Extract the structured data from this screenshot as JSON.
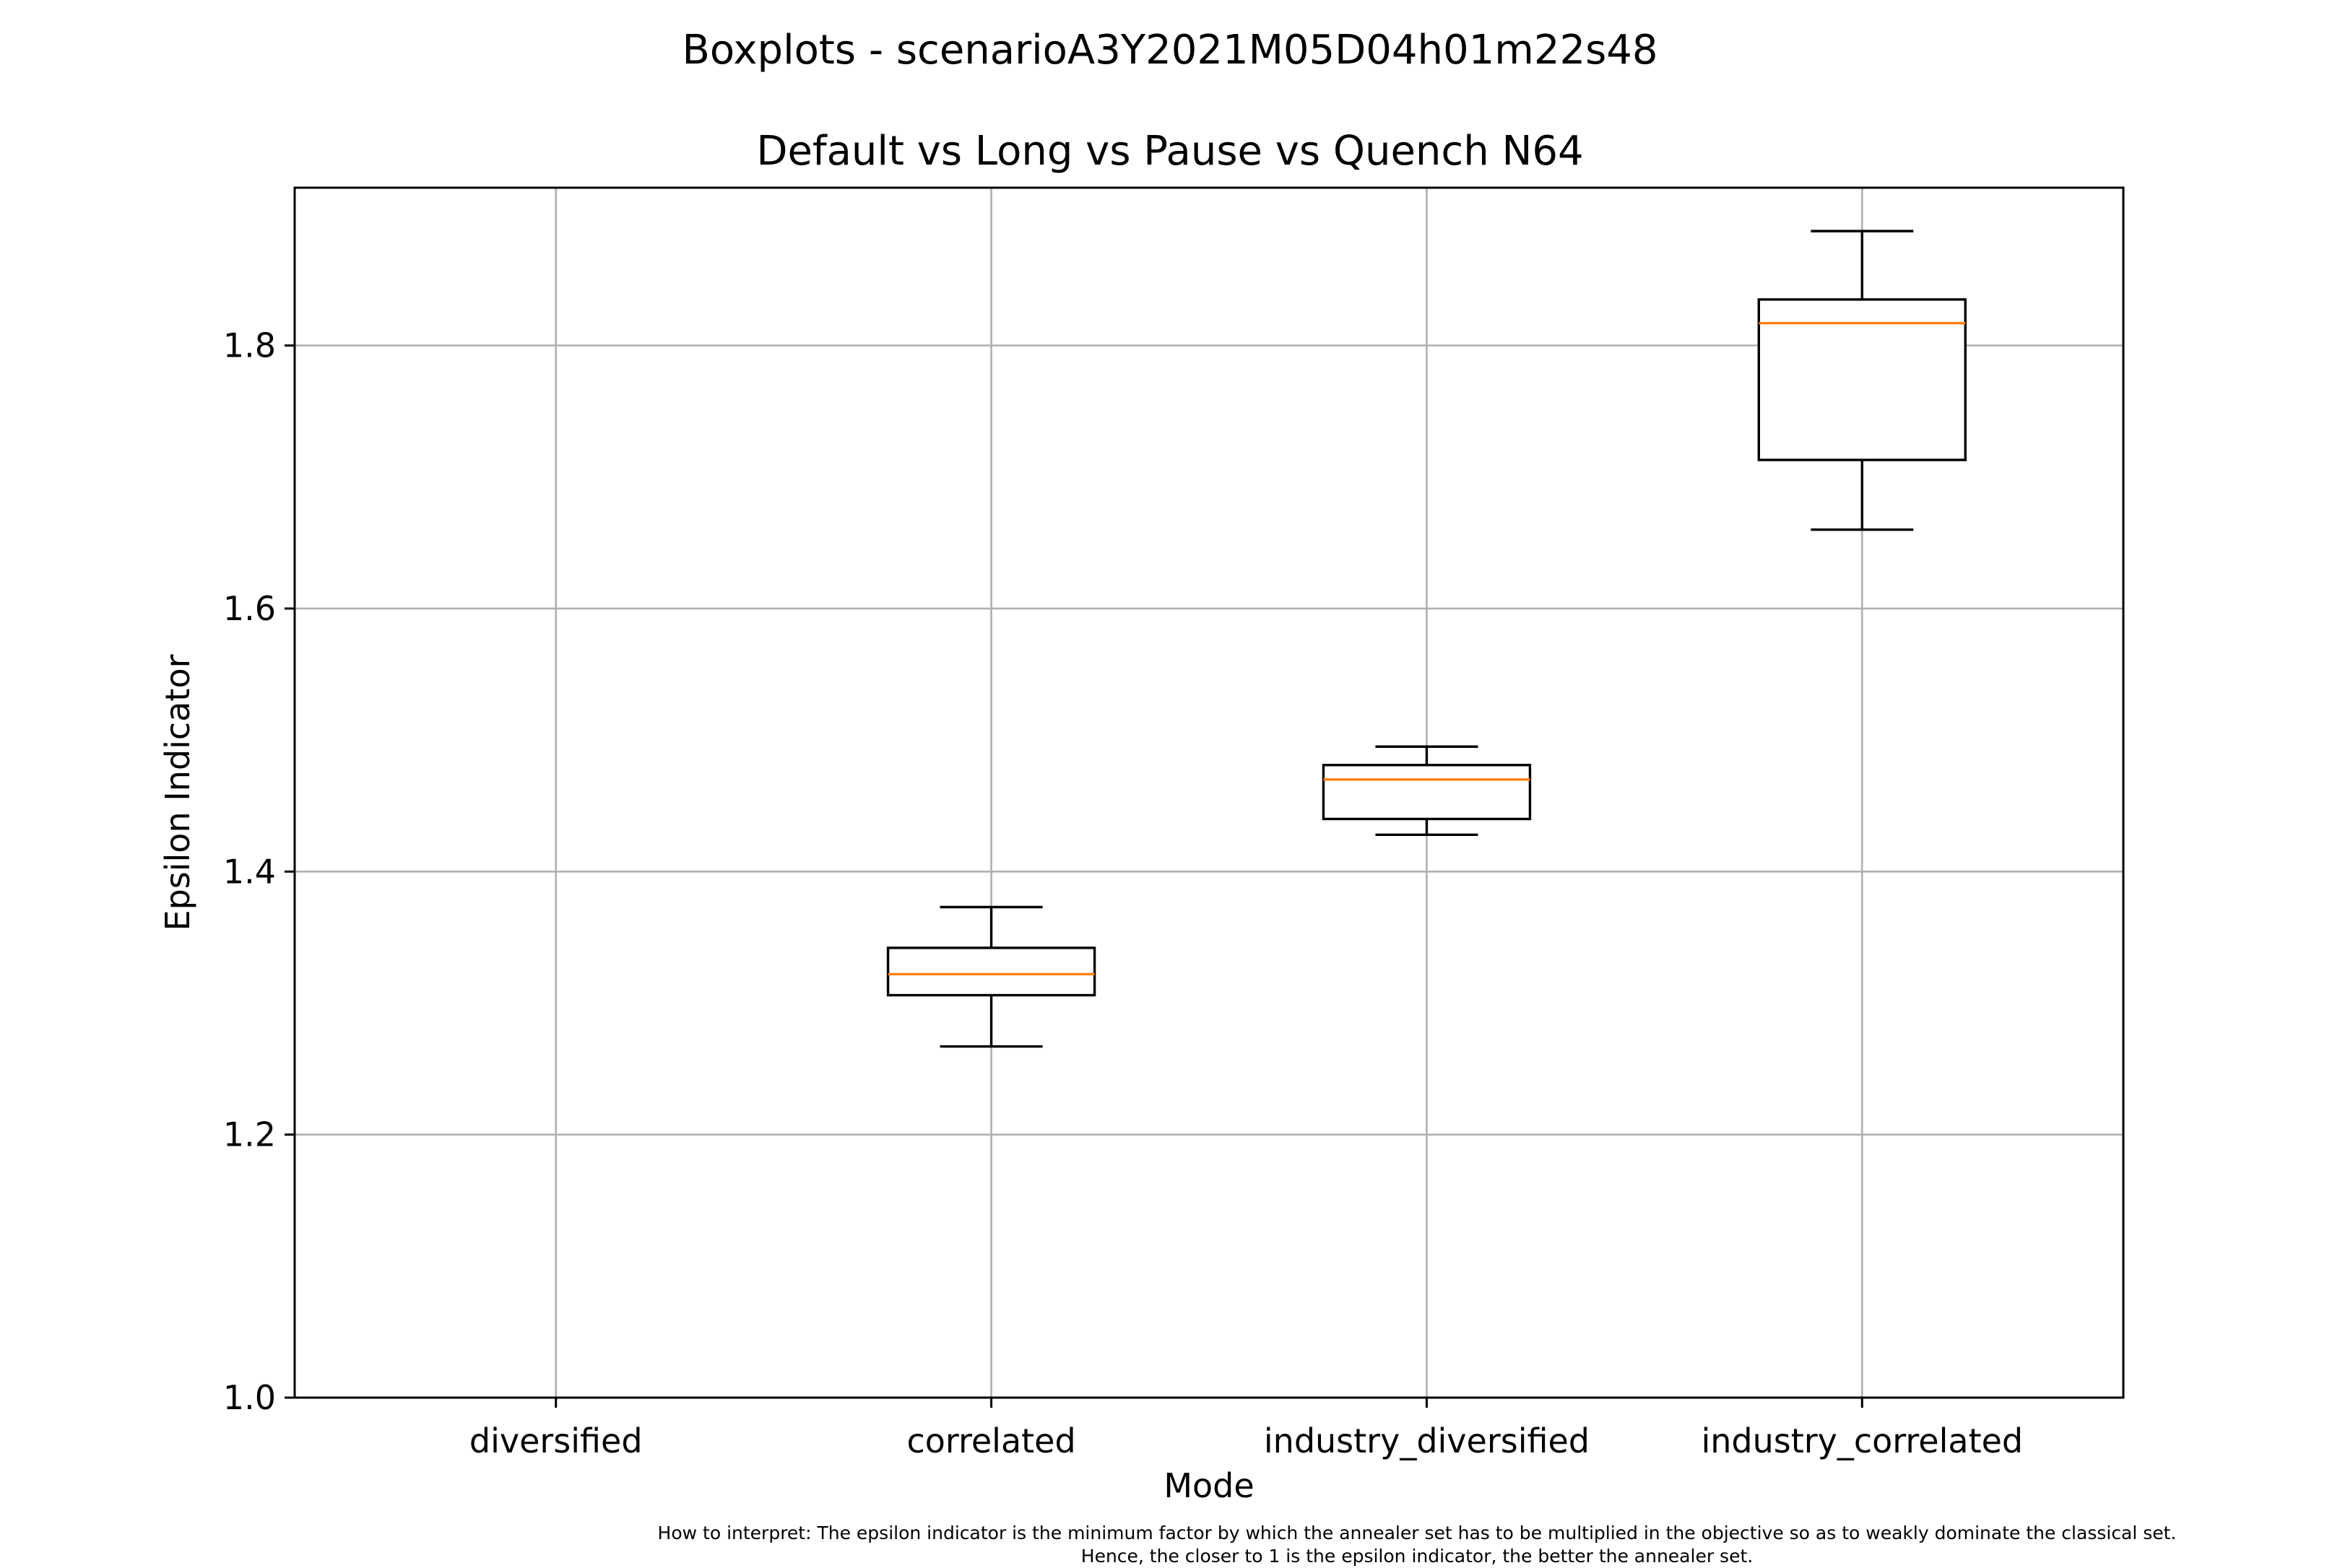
{
  "chart_data": {
    "type": "boxplot",
    "suptitle": "Boxplots - scenarioA3Y2021M05D04h01m22s48",
    "title": "Default vs Long vs Pause vs Quench N64",
    "xlabel": "Mode",
    "ylabel": "Epsilon Indicator",
    "ylim": [
      1.0,
      1.92
    ],
    "yticks": [
      "1.0",
      "1.2",
      "1.4",
      "1.6",
      "1.8"
    ],
    "grid": true,
    "categories": [
      "diversified",
      "correlated",
      "industry_diversified",
      "industry_correlated"
    ],
    "boxes": [
      null,
      {
        "whislo": 1.267,
        "q1": 1.306,
        "med": 1.322,
        "q3": 1.342,
        "whishi": 1.373
      },
      {
        "whislo": 1.428,
        "q1": 1.44,
        "med": 1.47,
        "q3": 1.481,
        "whishi": 1.495
      },
      {
        "whislo": 1.66,
        "q1": 1.713,
        "med": 1.817,
        "q3": 1.835,
        "whishi": 1.887
      }
    ],
    "colors": {
      "box": "#000000",
      "median": "#ff7f0e",
      "grid": "#b0b0b0"
    }
  },
  "footnote": {
    "line1": "How to interpret: The epsilon indicator is the minimum factor by which the annealer set has to be multiplied in the objective so as to weakly dominate the classical set.",
    "line2": "Hence, the closer to 1 is the epsilon indicator, the better the annealer set."
  }
}
